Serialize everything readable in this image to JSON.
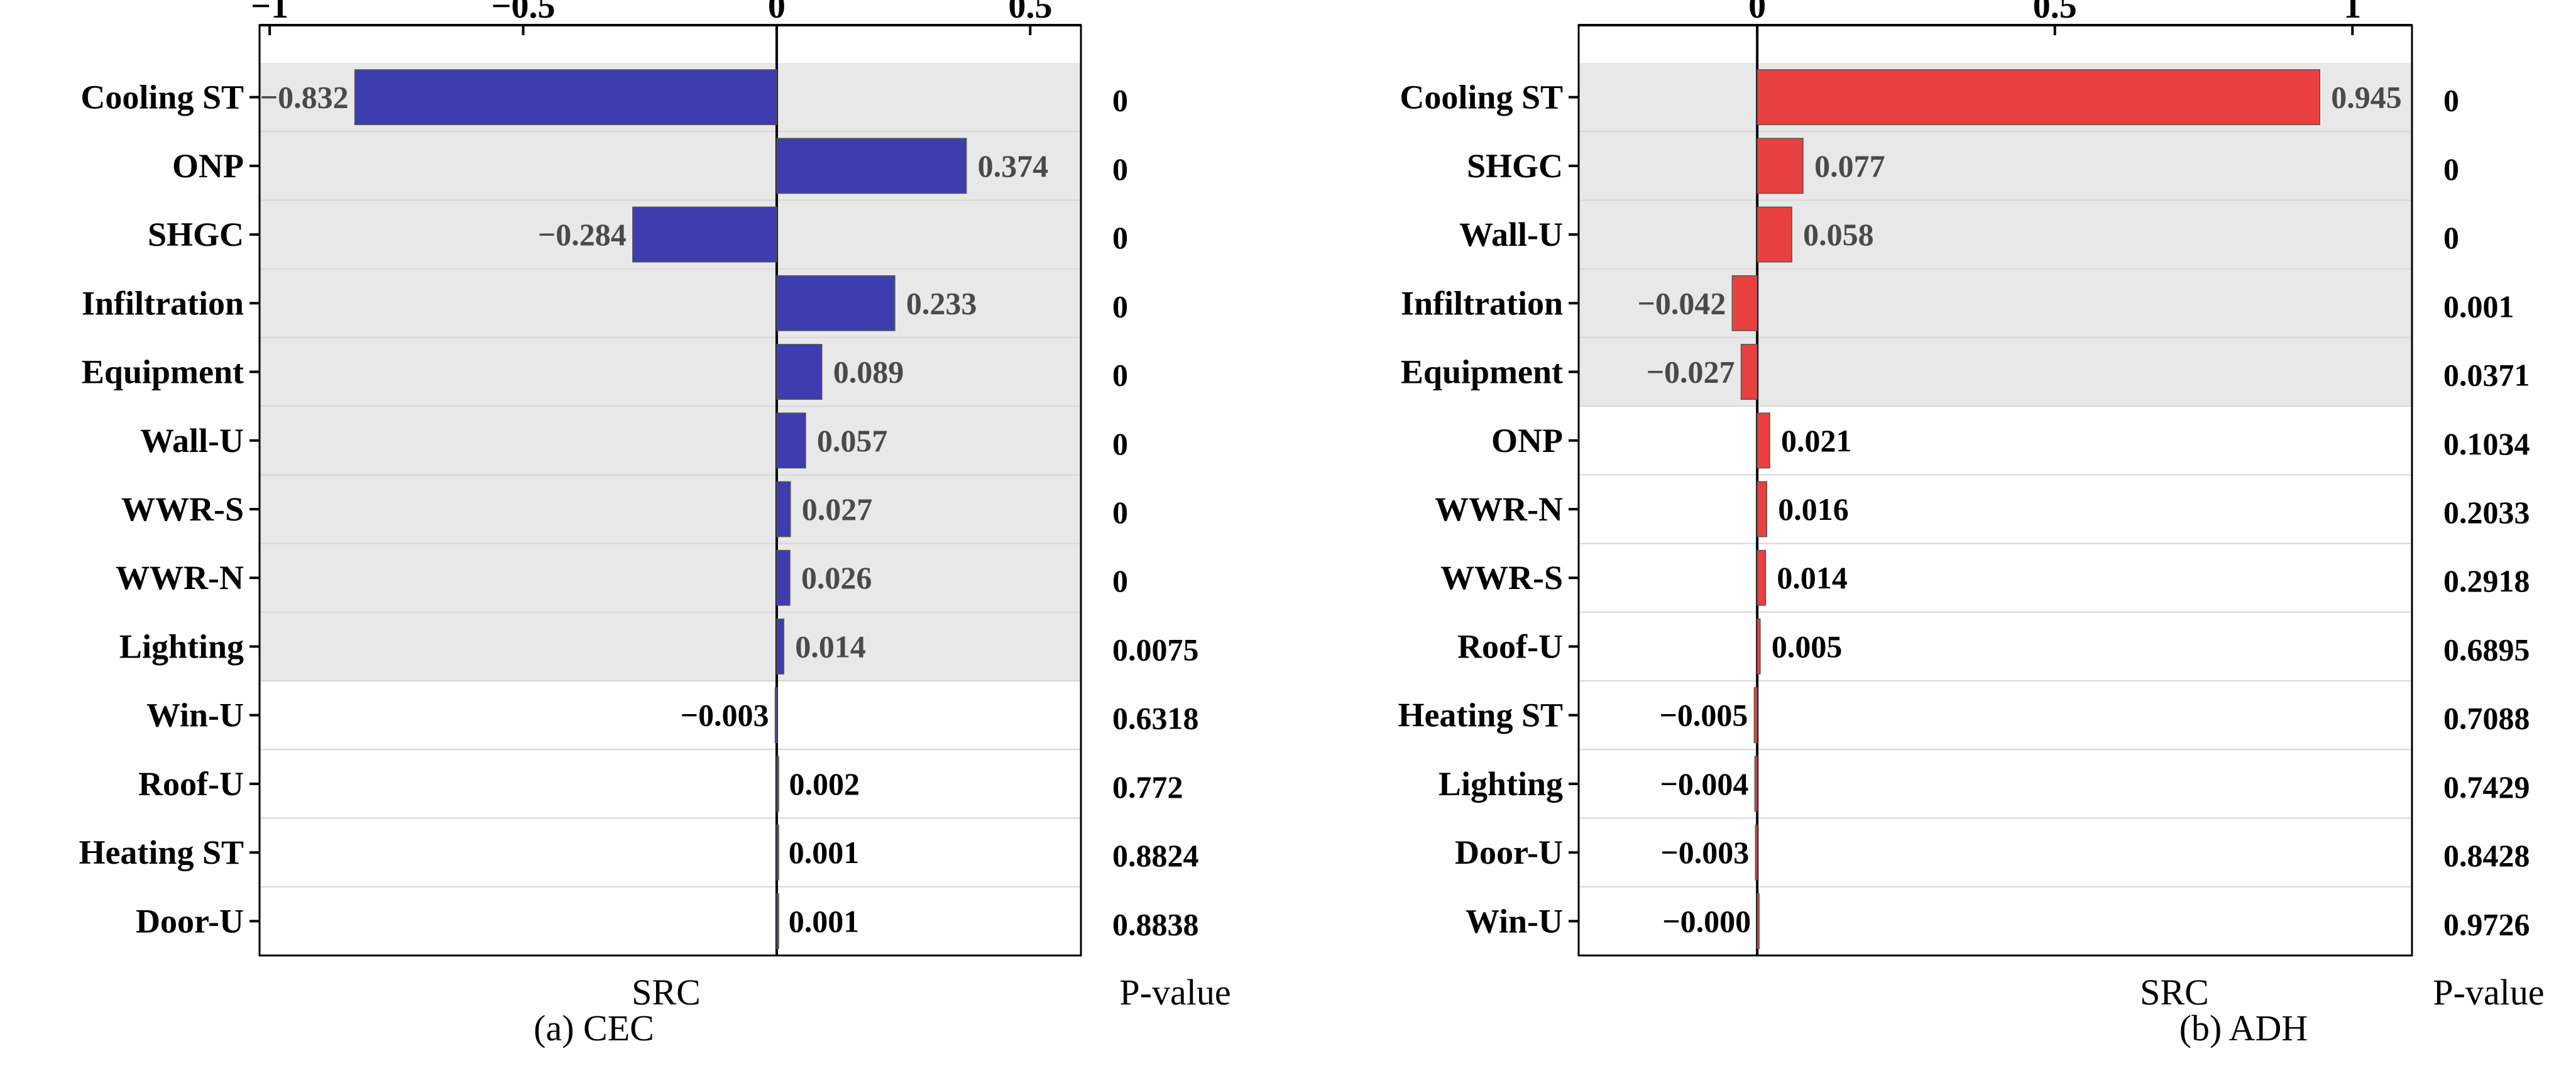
{
  "colors": {
    "cec_bar": "#3D3DAF",
    "adh_bar": "#E84040",
    "significant_bg": "#E8E8E8",
    "axis": "#000000",
    "row_separator": "#D6D6D6"
  },
  "chart_data": [
    {
      "type": "bar",
      "orientation": "horizontal",
      "caption": "(a) CEC",
      "xlabel": "SRC",
      "pvalue_label": "P-value",
      "xlim": [
        -1.02,
        0.6
      ],
      "xticks": [
        -1,
        -0.5,
        0,
        0.5
      ],
      "xtick_labels": [
        "−1",
        "−0.5",
        "0",
        "0.5"
      ],
      "categories": [
        "Cooling ST",
        "ONP",
        "SHGC",
        "Infiltration",
        "Equipment",
        "Wall-U",
        "WWR-S",
        "WWR-N",
        "Lighting",
        "Win-U",
        "Roof-U",
        "Heating ST",
        "Door-U"
      ],
      "values": [
        -0.832,
        0.374,
        -0.284,
        0.233,
        0.089,
        0.057,
        0.027,
        0.026,
        0.014,
        -0.003,
        0.002,
        0.001,
        0.001
      ],
      "value_labels": [
        "−0.832",
        "0.374",
        "−0.284",
        "0.233",
        "0.089",
        "0.057",
        "0.027",
        "0.026",
        "0.014",
        "−0.003",
        "0.002",
        "0.001",
        "0.001"
      ],
      "p_values": [
        "0",
        "0",
        "0",
        "0",
        "0",
        "0",
        "0",
        "0",
        "0.0075",
        "0.6318",
        "0.772",
        "0.8824",
        "0.8838"
      ],
      "significant_count": 9
    },
    {
      "type": "bar",
      "orientation": "horizontal",
      "caption": "(b)  ADH",
      "xlabel": "SRC",
      "pvalue_label": "P-value",
      "xlim": [
        -0.3,
        1.1
      ],
      "xticks": [
        0,
        0.5,
        1
      ],
      "xtick_labels": [
        "0",
        "0.5",
        "1"
      ],
      "categories": [
        "Cooling ST",
        "SHGC",
        "Wall-U",
        "Infiltration",
        "Equipment",
        "ONP",
        "WWR-N",
        "WWR-S",
        "Roof-U",
        "Heating ST",
        "Lighting",
        "Door-U",
        "Win-U"
      ],
      "values": [
        0.945,
        0.077,
        0.058,
        -0.042,
        -0.027,
        0.021,
        0.016,
        0.014,
        0.005,
        -0.005,
        -0.004,
        -0.003,
        -0.0
      ],
      "value_labels": [
        "0.945",
        "0.077",
        "0.058",
        "−0.042",
        "−0.027",
        "0.021",
        "0.016",
        "0.014",
        "0.005",
        "−0.005",
        "−0.004",
        "−0.003",
        "−0.000"
      ],
      "p_values": [
        "0",
        "0",
        "0",
        "0.001",
        "0.0371",
        "0.1034",
        "0.2033",
        "0.2918",
        "0.6895",
        "0.7088",
        "0.7429",
        "0.8428",
        "0.9726"
      ],
      "significant_count": 5
    }
  ]
}
